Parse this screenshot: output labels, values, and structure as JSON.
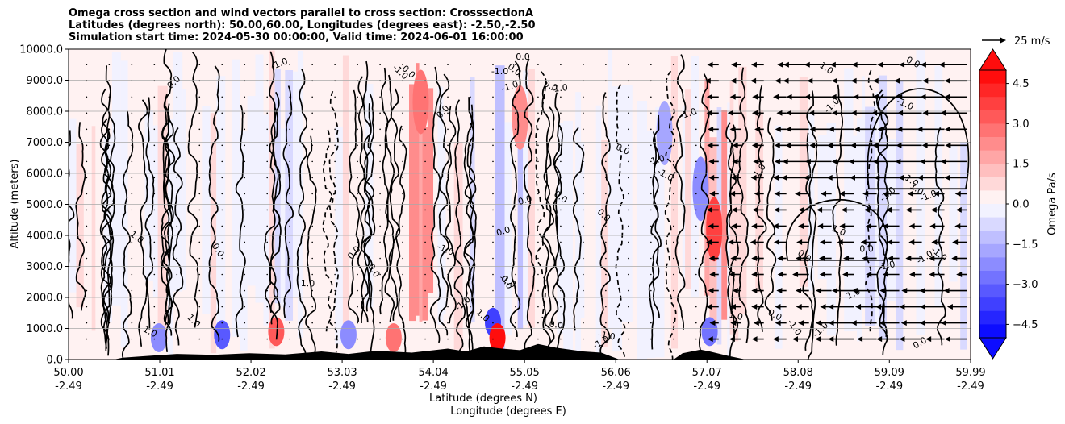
{
  "title": {
    "line1": "Omega cross section and wind vectors parallel to cross section: CrosssectionA",
    "line2": "Latitudes (degrees north): 50.00,60.00, Longitudes (degrees east): -2.50,-2.50",
    "line3": "Simulation start time: 2024-05-30 00:00:00, Valid time: 2024-06-01 16:00:00"
  },
  "chart_data": {
    "type": "heatmap",
    "title": "Omega cross section and wind vectors parallel to cross section: CrosssectionA",
    "ylabel": "Altitude (meters)",
    "xlabel_line1": "Latitude (degrees N)",
    "xlabel_line2": "Longitude (degrees E)",
    "ylim": [
      0,
      10000
    ],
    "xlim": [
      50.0,
      59.99
    ],
    "grid": "horizontal",
    "y_ticks": [
      "0.0",
      "1000.0",
      "2000.0",
      "3000.0",
      "4000.0",
      "5000.0",
      "6000.0",
      "7000.0",
      "8000.0",
      "9000.0",
      "10000.0"
    ],
    "x_ticks": [
      {
        "lat": "50.00",
        "lon": "-2.49"
      },
      {
        "lat": "51.01",
        "lon": "-2.49"
      },
      {
        "lat": "52.02",
        "lon": "-2.49"
      },
      {
        "lat": "53.03",
        "lon": "-2.49"
      },
      {
        "lat": "54.04",
        "lon": "-2.49"
      },
      {
        "lat": "55.05",
        "lon": "-2.49"
      },
      {
        "lat": "56.06",
        "lon": "-2.49"
      },
      {
        "lat": "57.07",
        "lon": "-2.49"
      },
      {
        "lat": "58.08",
        "lon": "-2.49"
      },
      {
        "lat": "59.09",
        "lon": "-2.49"
      },
      {
        "lat": "59.99",
        "lon": "-2.49"
      }
    ],
    "colorbar": {
      "label": "Omega Pa/s",
      "min": -5.0,
      "max": 5.0,
      "levels": 20,
      "ticks": [
        "4.5",
        "3.0",
        "1.5",
        "0.0",
        "−1.5",
        "−3.0",
        "−4.5"
      ],
      "colormap": "bwr"
    },
    "quiver_key": {
      "label": "25 m/s",
      "value": 25
    },
    "wind_vectors": [
      {
        "region": "57.2-58.1",
        "direction": "southward",
        "speed_ms": 5
      },
      {
        "region": "58.1-60.0 above 5500 m",
        "direction": "southward",
        "speed_ms": 12
      },
      {
        "region": "58.5-60.0 below 2500 m",
        "direction": "southward",
        "speed_ms": 12
      }
    ],
    "contour_labels": [
      "0.0",
      "1.0",
      "-1.0"
    ],
    "terrain_color": "#000000"
  }
}
